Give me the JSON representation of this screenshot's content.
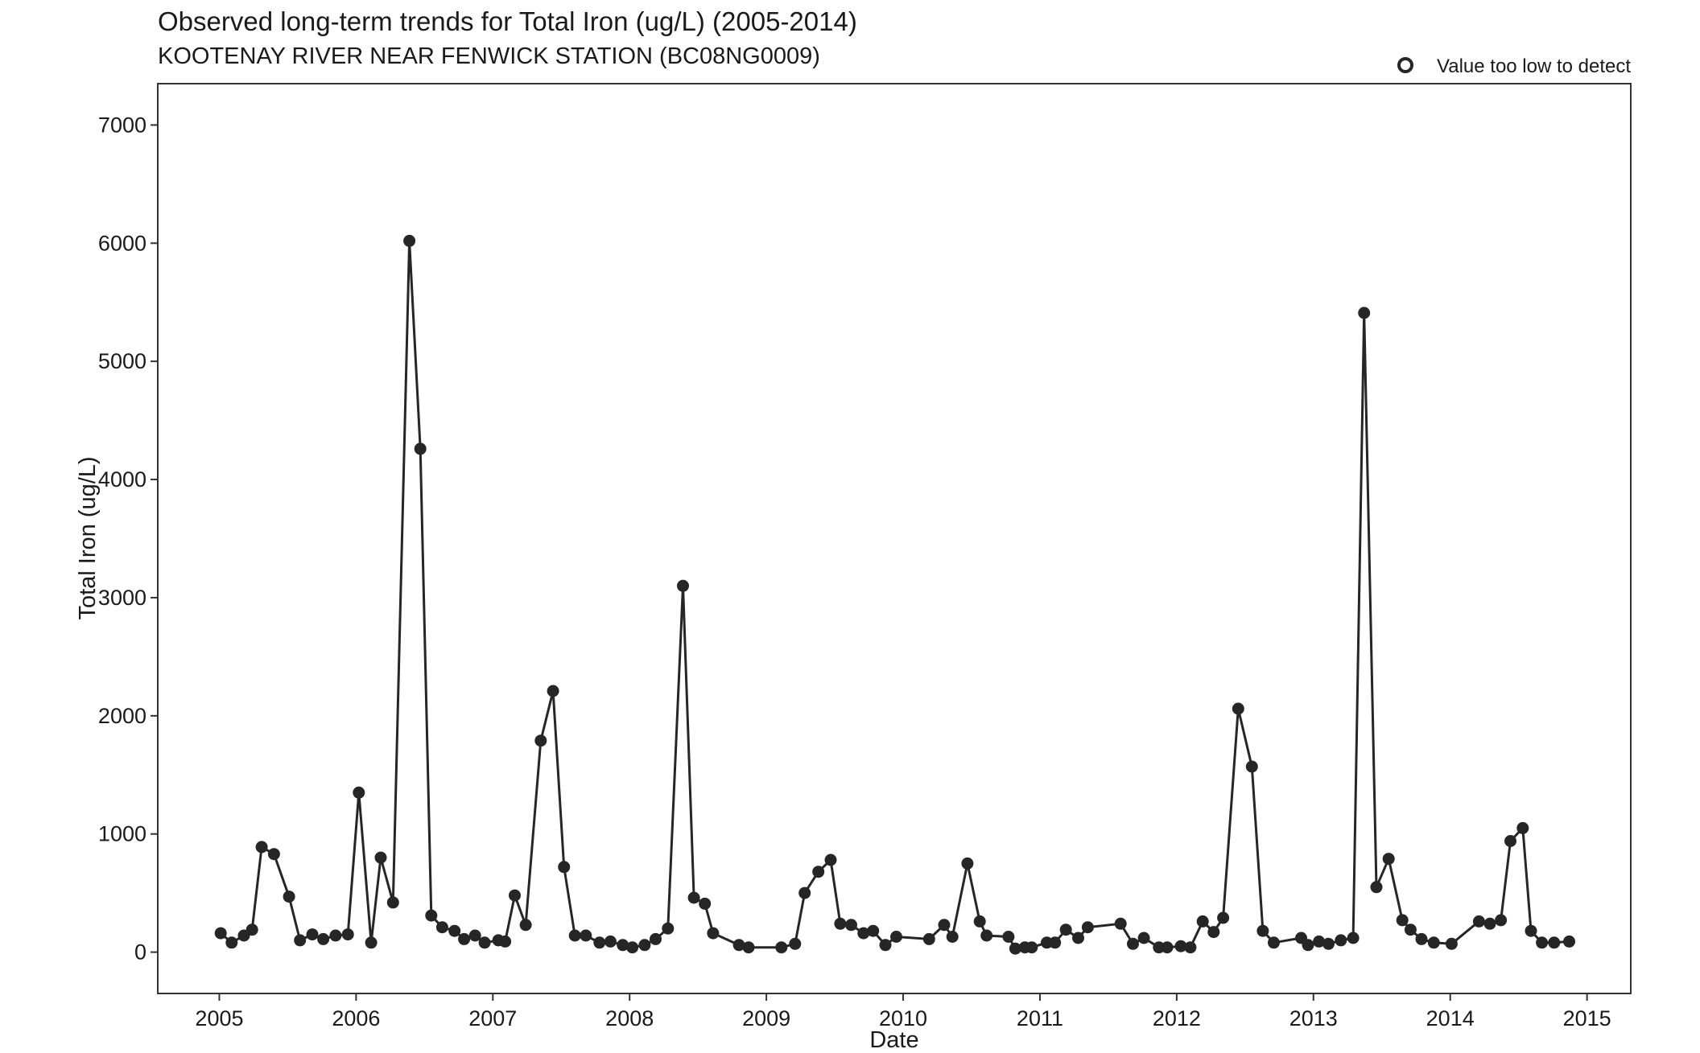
{
  "chart_data": {
    "type": "line",
    "title": "Observed long-term trends for Total Iron (ug/L) (2005-2014)",
    "subtitle": "KOOTENAY RIVER NEAR FENWICK STATION (BC08NG0009)",
    "xlabel": "Date",
    "ylabel": "Total Iron (ug/L)",
    "xlim": [
      2004.55,
      2015.32
    ],
    "ylim": [
      -350,
      7350
    ],
    "x_ticks": [
      2005,
      2006,
      2007,
      2008,
      2009,
      2010,
      2011,
      2012,
      2013,
      2014,
      2015
    ],
    "y_ticks": [
      0,
      1000,
      2000,
      3000,
      4000,
      5000,
      6000,
      7000
    ],
    "grid": false,
    "legend": {
      "position": "top-right",
      "entries": [
        {
          "label": "Value too low to detect",
          "marker": "open-circle"
        }
      ]
    },
    "colors": {
      "series": "#262626",
      "axis": "#333333"
    },
    "series": [
      {
        "x": [
          2005.01,
          2005.09,
          2005.18,
          2005.24,
          2005.31,
          2005.4,
          2005.51,
          2005.59,
          2005.68,
          2005.76,
          2005.85,
          2005.94,
          2006.02,
          2006.11,
          2006.18,
          2006.27,
          2006.39,
          2006.47,
          2006.55,
          2006.63,
          2006.72,
          2006.79,
          2006.87,
          2006.94,
          2007.04,
          2007.09,
          2007.16,
          2007.24,
          2007.35,
          2007.44,
          2007.52,
          2007.6,
          2007.68,
          2007.78,
          2007.86,
          2007.95,
          2008.02,
          2008.11,
          2008.19,
          2008.28,
          2008.39,
          2008.47,
          2008.55,
          2008.61,
          2008.8,
          2008.87,
          2009.11,
          2009.21,
          2009.28,
          2009.38,
          2009.47,
          2009.54,
          2009.62,
          2009.71,
          2009.78,
          2009.87,
          2009.95,
          2010.19,
          2010.3,
          2010.36,
          2010.47,
          2010.56,
          2010.61,
          2010.77,
          2010.82,
          2010.89,
          2010.94,
          2011.05,
          2011.11,
          2011.19,
          2011.28,
          2011.35,
          2011.59,
          2011.68,
          2011.76,
          2011.87,
          2011.93,
          2012.03,
          2012.1,
          2012.19,
          2012.27,
          2012.34,
          2012.45,
          2012.55,
          2012.63,
          2012.71,
          2012.91,
          2012.96,
          2013.04,
          2013.11,
          2013.2,
          2013.29,
          2013.37,
          2013.46,
          2013.55,
          2013.65,
          2013.71,
          2013.79,
          2013.88,
          2014.01,
          2014.21,
          2014.29,
          2014.37,
          2014.44,
          2014.53,
          2014.59,
          2014.67,
          2014.76,
          2014.87
        ],
        "y": [
          160,
          80,
          140,
          190,
          890,
          830,
          470,
          100,
          150,
          110,
          140,
          150,
          1350,
          80,
          800,
          420,
          6020,
          4260,
          310,
          210,
          180,
          110,
          140,
          80,
          100,
          90,
          480,
          230,
          1790,
          2210,
          720,
          140,
          140,
          80,
          90,
          60,
          40,
          60,
          110,
          200,
          3100,
          460,
          410,
          160,
          60,
          40,
          40,
          70,
          500,
          680,
          780,
          240,
          230,
          160,
          180,
          60,
          130,
          110,
          230,
          130,
          750,
          260,
          140,
          130,
          30,
          40,
          40,
          80,
          80,
          190,
          120,
          210,
          240,
          70,
          120,
          40,
          40,
          50,
          40,
          260,
          170,
          290,
          2060,
          1570,
          180,
          80,
          120,
          60,
          90,
          70,
          100,
          120,
          5410,
          550,
          790,
          270,
          190,
          110,
          80,
          70,
          260,
          240,
          270,
          940,
          1050,
          180,
          80,
          80,
          90
        ]
      }
    ]
  }
}
